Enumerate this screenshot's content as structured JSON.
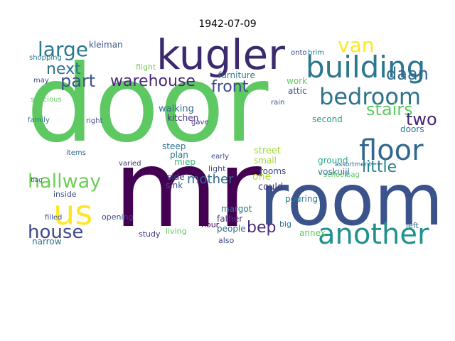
{
  "title": "1942-07-09",
  "words": [
    {
      "text": "door",
      "color": "#5ec962"
    },
    {
      "text": "mr",
      "color": "#440154"
    },
    {
      "text": "room",
      "color": "#3b528b"
    },
    {
      "text": "kugler",
      "color": "#3b2a6e"
    },
    {
      "text": "building",
      "color": "#2a788e"
    },
    {
      "text": "another",
      "color": "#21918c"
    },
    {
      "text": "floor",
      "color": "#31688e"
    },
    {
      "text": "us",
      "color": "#fde725"
    },
    {
      "text": "hallway",
      "color": "#6ece58"
    },
    {
      "text": "bedroom",
      "color": "#2c728e"
    },
    {
      "text": "house",
      "color": "#3e4989"
    },
    {
      "text": "large",
      "color": "#2a788e"
    },
    {
      "text": "van",
      "color": "#fde725"
    },
    {
      "text": "stairs",
      "color": "#5ec962"
    },
    {
      "text": "warehouse",
      "color": "#482878"
    },
    {
      "text": "part",
      "color": "#3b528b"
    },
    {
      "text": "front",
      "color": "#3e4989"
    },
    {
      "text": "next",
      "color": "#2c728e"
    },
    {
      "text": "daan",
      "color": "#31688e"
    },
    {
      "text": "little",
      "color": "#26828e"
    },
    {
      "text": "two",
      "color": "#482475"
    },
    {
      "text": "bep",
      "color": "#472c7a"
    },
    {
      "text": "mother",
      "color": "#31688e"
    },
    {
      "text": "annex",
      "color": "#5ec962"
    },
    {
      "text": "kitchen",
      "color": "#46327e"
    },
    {
      "text": "steep",
      "color": "#2c728e"
    },
    {
      "text": "miep",
      "color": "#35b779"
    },
    {
      "text": "plan",
      "color": "#2c728e"
    },
    {
      "text": "side",
      "color": "#3e4989"
    },
    {
      "text": "sink",
      "color": "#39568c"
    },
    {
      "text": "walking",
      "color": "#31688e"
    },
    {
      "text": "furniture",
      "color": "#2a788e"
    },
    {
      "text": "street",
      "color": "#a0da39"
    },
    {
      "text": "small",
      "color": "#a0da39"
    },
    {
      "text": "rooms",
      "color": "#3e4989"
    },
    {
      "text": "could",
      "color": "#46327e"
    },
    {
      "text": "one",
      "color": "#b5de2b"
    },
    {
      "text": "second",
      "color": "#1f9e89"
    },
    {
      "text": "ground",
      "color": "#22a884"
    },
    {
      "text": "voskuijl",
      "color": "#2c728e"
    },
    {
      "text": "doors",
      "color": "#2a788e"
    },
    {
      "text": "attic",
      "color": "#3b528b"
    },
    {
      "text": "work",
      "color": "#5ec962"
    },
    {
      "text": "brim",
      "color": "#26828e"
    },
    {
      "text": "kleiman",
      "color": "#39568c"
    },
    {
      "text": "onto",
      "color": "#3e4989"
    },
    {
      "text": "spacious",
      "color": "#5ec962"
    },
    {
      "text": "shopping",
      "color": "#2a788e"
    },
    {
      "text": "family",
      "color": "#2c728e"
    },
    {
      "text": "right",
      "color": "#3b528b"
    },
    {
      "text": "flight",
      "color": "#7ad151"
    },
    {
      "text": "items",
      "color": "#31688e"
    },
    {
      "text": "inside",
      "color": "#3b528b"
    },
    {
      "text": "narrow",
      "color": "#2c728e"
    },
    {
      "text": "opening",
      "color": "#3e4989"
    },
    {
      "text": "study",
      "color": "#46327e"
    },
    {
      "text": "living",
      "color": "#5ec962"
    },
    {
      "text": "margot",
      "color": "#2c728e"
    },
    {
      "text": "people",
      "color": "#31688e"
    },
    {
      "text": "father",
      "color": "#46327e"
    },
    {
      "text": "also",
      "color": "#3e4989"
    },
    {
      "text": "hour",
      "color": "#440154"
    },
    {
      "text": "pouring",
      "color": "#2a788e"
    },
    {
      "text": "big",
      "color": "#2c728e"
    },
    {
      "text": "left",
      "color": "#2a788e"
    },
    {
      "text": "light",
      "color": "#3e4989"
    },
    {
      "text": "early",
      "color": "#3e4989"
    },
    {
      "text": "varied",
      "color": "#46327e"
    },
    {
      "text": "rain",
      "color": "#3b528b"
    },
    {
      "text": "schoolbag",
      "color": "#5ec962"
    },
    {
      "text": "assortment",
      "color": "#31688e"
    },
    {
      "text": "filled",
      "color": "#3e4989"
    },
    {
      "text": "bag",
      "color": "#3e4989"
    },
    {
      "text": "may",
      "color": "#3b528b"
    },
    {
      "text": "gave",
      "color": "#46327e"
    }
  ]
}
